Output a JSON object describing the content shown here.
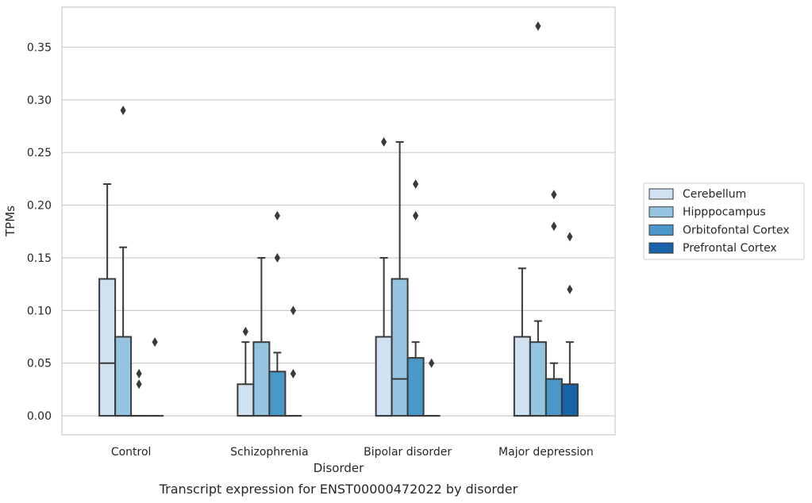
{
  "chart_data": {
    "type": "box",
    "title": "",
    "caption": "Transcript expression for ENST00000472022 by disorder",
    "xlabel": "Disorder",
    "ylabel": "TPMs",
    "ylim": [
      -0.018,
      0.388
    ],
    "yticks": [
      0.0,
      0.05,
      0.1,
      0.15,
      0.2,
      0.25,
      0.3,
      0.35
    ],
    "ytick_labels": [
      "0.00",
      "0.05",
      "0.10",
      "0.15",
      "0.20",
      "0.25",
      "0.30",
      "0.35"
    ],
    "grid": "horizontal",
    "legend_placement": "right",
    "categories": [
      "Control",
      "Schizophrenia",
      "Bipolar disorder",
      "Major depression"
    ],
    "series": [
      {
        "name": "Cerebellum",
        "color": "#d0e1f2",
        "boxes": [
          {
            "q1": 0.0,
            "median": 0.05,
            "q3": 0.13,
            "whisker_low": 0.0,
            "whisker_high": 0.22,
            "outliers": []
          },
          {
            "q1": 0.0,
            "median": 0.0,
            "q3": 0.03,
            "whisker_low": 0.0,
            "whisker_high": 0.07,
            "outliers": [
              0.08
            ]
          },
          {
            "q1": 0.0,
            "median": 0.0,
            "q3": 0.075,
            "whisker_low": 0.0,
            "whisker_high": 0.15,
            "outliers": [
              0.26
            ]
          },
          {
            "q1": 0.0,
            "median": 0.0,
            "q3": 0.075,
            "whisker_low": 0.0,
            "whisker_high": 0.14,
            "outliers": []
          }
        ]
      },
      {
        "name": "Hipppocampus",
        "color": "#94c4df",
        "boxes": [
          {
            "q1": 0.0,
            "median": 0.0,
            "q3": 0.075,
            "whisker_low": 0.0,
            "whisker_high": 0.16,
            "outliers": [
              0.29
            ]
          },
          {
            "q1": 0.0,
            "median": 0.0,
            "q3": 0.07,
            "whisker_low": 0.0,
            "whisker_high": 0.15,
            "outliers": []
          },
          {
            "q1": 0.0,
            "median": 0.035,
            "q3": 0.13,
            "whisker_low": 0.0,
            "whisker_high": 0.26,
            "outliers": []
          },
          {
            "q1": 0.0,
            "median": 0.0,
            "q3": 0.07,
            "whisker_low": 0.0,
            "whisker_high": 0.09,
            "outliers": [
              0.37
            ]
          }
        ]
      },
      {
        "name": "Orbitofontal Cortex",
        "color": "#4a98c9",
        "boxes": [
          {
            "q1": 0.0,
            "median": 0.0,
            "q3": 0.0,
            "whisker_low": 0.0,
            "whisker_high": 0.0,
            "outliers": [
              0.04,
              0.03
            ]
          },
          {
            "q1": 0.0,
            "median": 0.0,
            "q3": 0.042,
            "whisker_low": 0.0,
            "whisker_high": 0.06,
            "outliers": [
              0.19,
              0.15
            ]
          },
          {
            "q1": 0.0,
            "median": 0.0,
            "q3": 0.055,
            "whisker_low": 0.0,
            "whisker_high": 0.07,
            "outliers": [
              0.22,
              0.19
            ]
          },
          {
            "q1": 0.0,
            "median": 0.0,
            "q3": 0.035,
            "whisker_low": 0.0,
            "whisker_high": 0.05,
            "outliers": [
              0.21,
              0.18
            ]
          }
        ]
      },
      {
        "name": "Prefrontal Cortex",
        "color": "#1764ab",
        "boxes": [
          {
            "q1": 0.0,
            "median": 0.0,
            "q3": 0.0,
            "whisker_low": 0.0,
            "whisker_high": 0.0,
            "outliers": [
              0.07
            ]
          },
          {
            "q1": 0.0,
            "median": 0.0,
            "q3": 0.0,
            "whisker_low": 0.0,
            "whisker_high": 0.0,
            "outliers": [
              0.1,
              0.04
            ]
          },
          {
            "q1": 0.0,
            "median": 0.0,
            "q3": 0.0,
            "whisker_low": 0.0,
            "whisker_high": 0.0,
            "outliers": [
              0.05
            ]
          },
          {
            "q1": 0.0,
            "median": 0.0,
            "q3": 0.03,
            "whisker_low": 0.0,
            "whisker_high": 0.07,
            "outliers": [
              0.17,
              0.12
            ]
          }
        ]
      }
    ]
  }
}
